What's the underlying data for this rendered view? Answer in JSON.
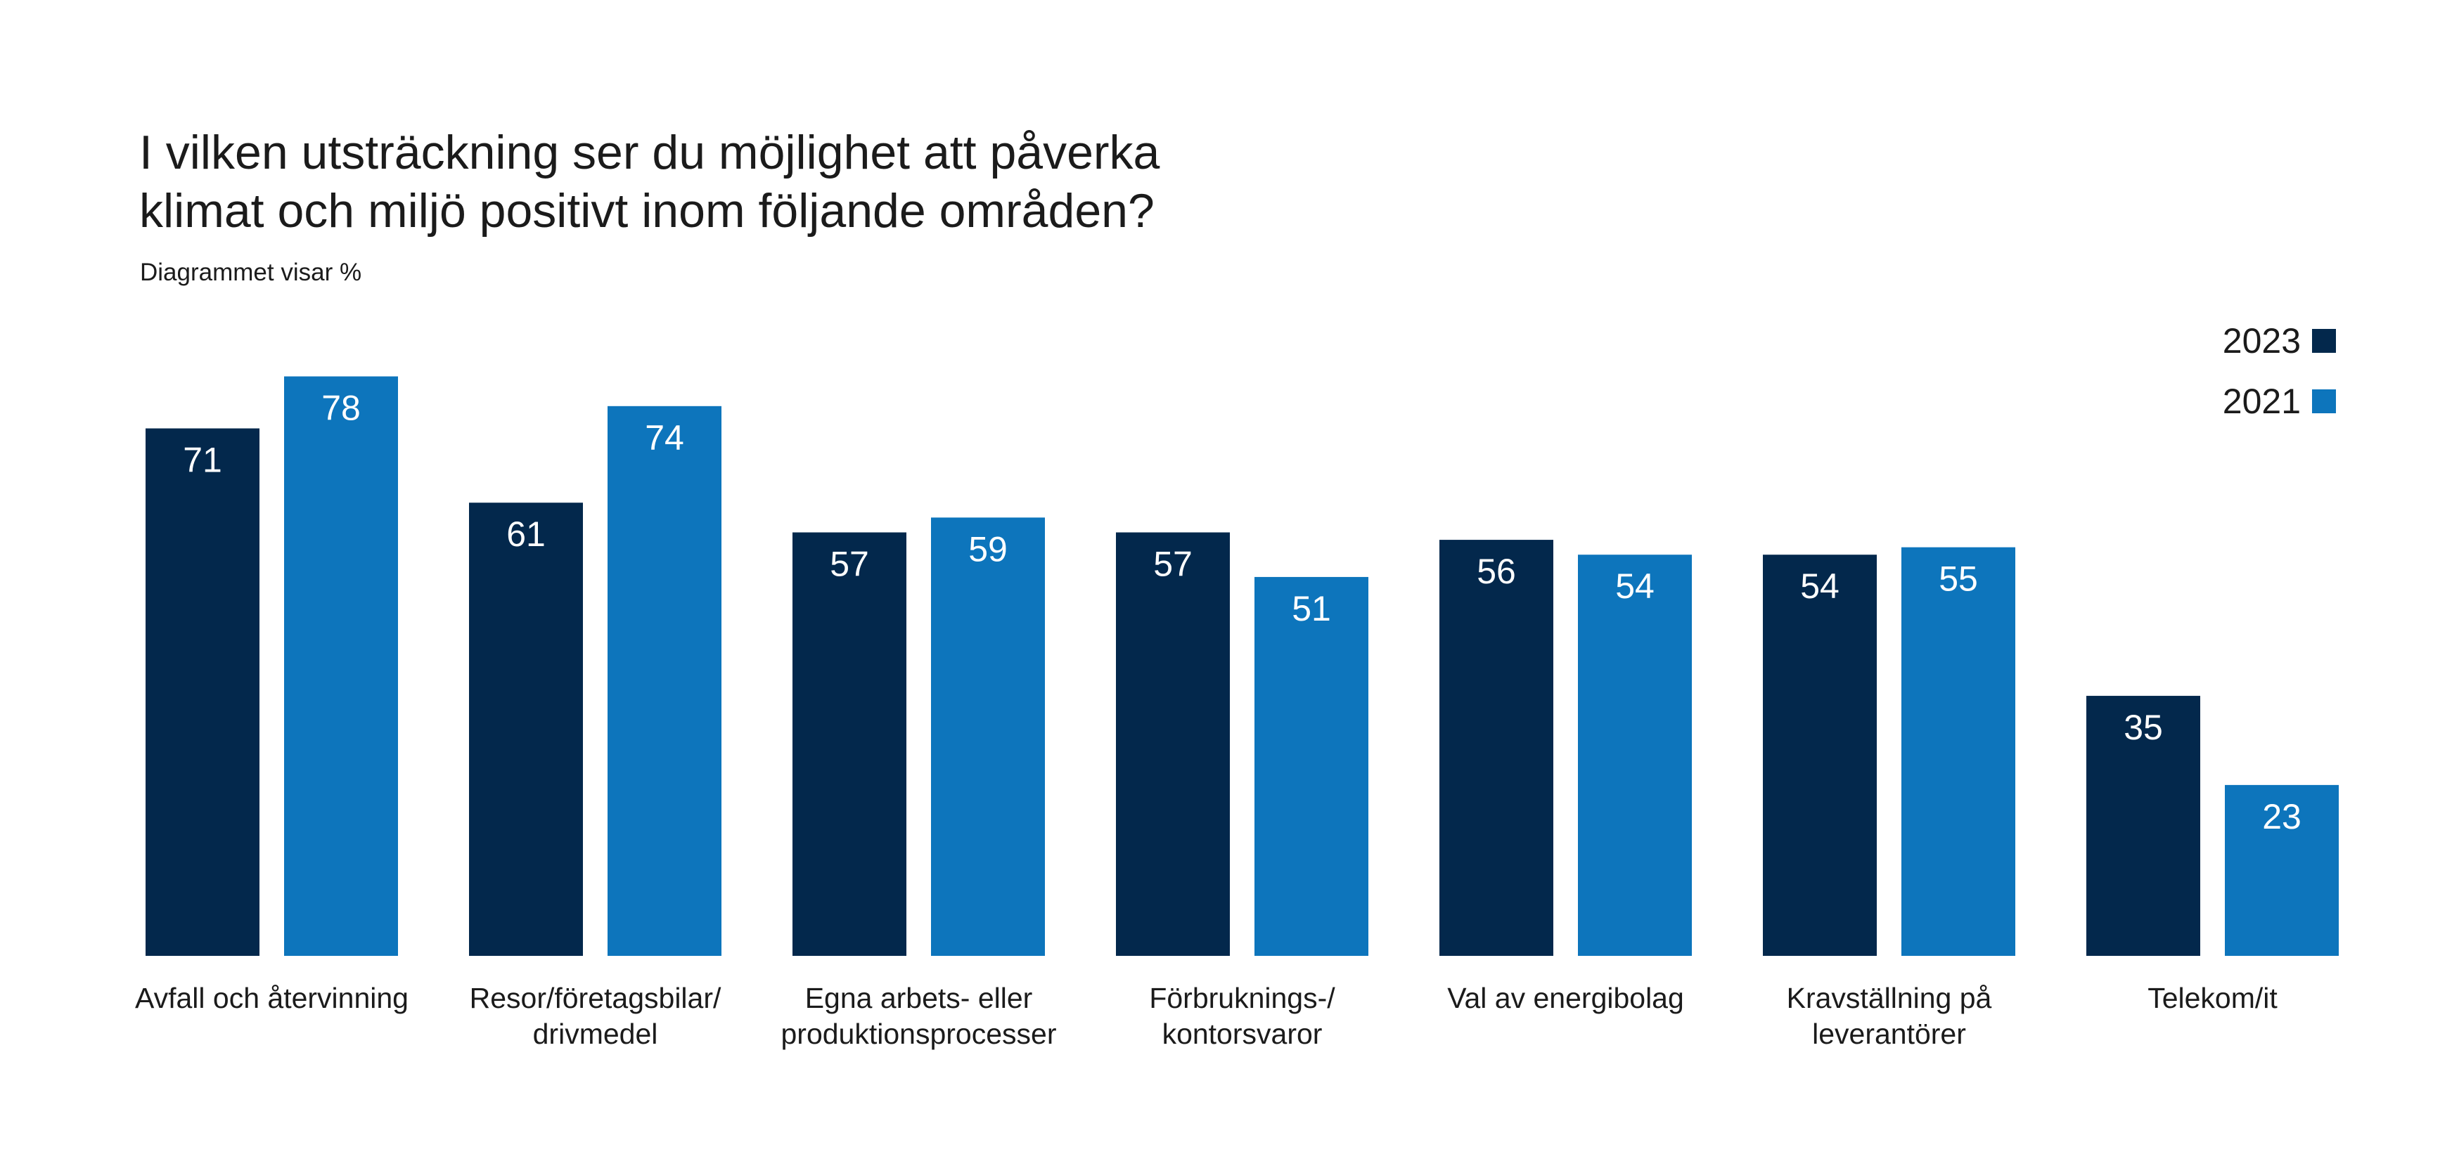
{
  "chart_data": {
    "type": "bar",
    "title_lines": [
      "I vilken utsträckning ser du möjlighet att påverka",
      "klimat och miljö positivt inom följande områden?"
    ],
    "subtitle": "Diagrammet visar %",
    "categories": [
      [
        "Avfall och återvinning"
      ],
      [
        "Resor/företagsbilar/",
        "drivmedel"
      ],
      [
        "Egna arbets- eller",
        "produktionsprocesser"
      ],
      [
        "Förbruknings-/",
        "kontorsvaror"
      ],
      [
        "Val av energibolag"
      ],
      [
        "Kravställning på",
        "leverantörer"
      ],
      [
        "Telekom/it"
      ]
    ],
    "series": [
      {
        "name": "2023",
        "color": "#03284c",
        "values": [
          71,
          61,
          57,
          57,
          56,
          54,
          35
        ]
      },
      {
        "name": "2021",
        "color": "#0d75bc",
        "values": [
          78,
          74,
          59,
          51,
          54,
          55,
          23
        ]
      }
    ],
    "ylim": [
      0,
      100
    ],
    "grid": false,
    "legend_position": "top-right",
    "data_label_color": "#ffffff"
  }
}
